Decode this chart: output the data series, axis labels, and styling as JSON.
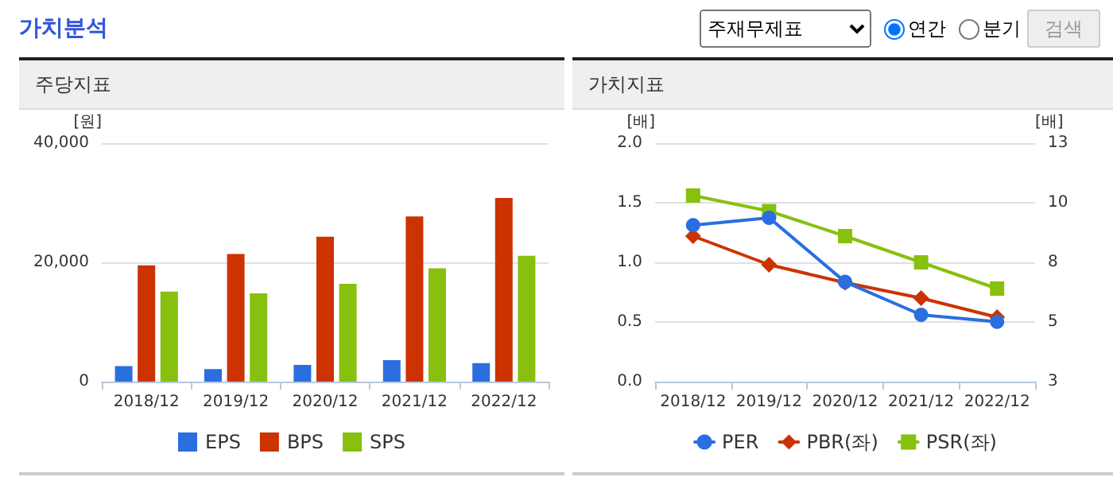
{
  "chart_data": [
    {
      "type": "bar",
      "title": "주당지표",
      "ylabel": "[원]",
      "annotations": [
        "가치분석",
        "주재무제표",
        "연간",
        "분기",
        "검색"
      ],
      "categories": [
        "2018/12",
        "2019/12",
        "2020/12",
        "2021/12",
        "2022/12"
      ],
      "series": [
        {
          "name": "EPS",
          "color": "#2a6ee0",
          "values": [
            2600,
            2100,
            2800,
            3600,
            3100
          ]
        },
        {
          "name": "BPS",
          "color": "#cc3300",
          "values": [
            19500,
            21400,
            24300,
            27700,
            30800
          ]
        },
        {
          "name": "SPS",
          "color": "#88c010",
          "values": [
            15100,
            14800,
            16400,
            19000,
            21100
          ]
        }
      ],
      "ylim": [
        0,
        40000
      ],
      "yticks": [
        0,
        {
          "value": 20000,
          "label": "20,000"
        },
        {
          "value": 40000,
          "label": "40,000"
        }
      ],
      "grid": "y",
      "legend": "bottom"
    },
    {
      "type": "line",
      "title": "가치지표",
      "ylabel": "[배]",
      "y2label": "[배]",
      "categories": [
        "2018/12",
        "2019/12",
        "2020/12",
        "2021/12",
        "2022/12"
      ],
      "series": [
        {
          "name": "PER",
          "color": "#2a6ee0",
          "axis": "y2",
          "marker": "circle",
          "values": [
            9.56,
            9.87,
            7.18,
            5.8,
            5.51
          ]
        },
        {
          "name": "PBR(좌)",
          "color": "#cc3300",
          "marker": "diamond",
          "values": [
            1.22,
            0.98,
            0.83,
            0.7,
            0.54
          ]
        },
        {
          "name": "PSR(좌)",
          "color": "#88c010",
          "marker": "square",
          "values": [
            1.56,
            1.43,
            1.22,
            1.0,
            0.78
          ]
        }
      ],
      "ylim": [
        0,
        2
      ],
      "yticks": [
        {
          "value": 0,
          "label": "0.0"
        },
        0.5,
        {
          "value": 1,
          "label": "1.0"
        },
        1.5,
        {
          "value": 2,
          "label": "2.0"
        }
      ],
      "y2lim": [
        3,
        13
      ],
      "y2ticks": [
        3,
        {
          "value": 5.5,
          "label": "5"
        },
        8,
        {
          "value": 10.5,
          "label": "10"
        },
        13
      ],
      "grid": "y",
      "legend": "bottom",
      "line_style": "solid"
    }
  ]
}
